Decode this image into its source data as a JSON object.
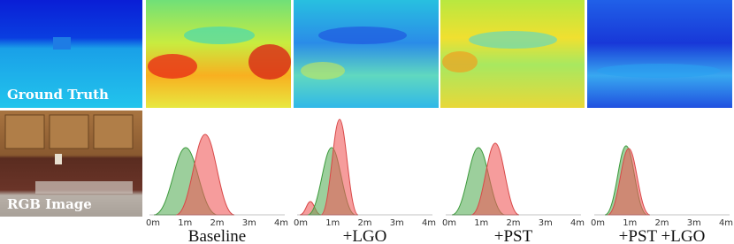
{
  "panels": {
    "ground_truth_label": "Ground Truth",
    "rgb_label": "RGB Image"
  },
  "columns": [
    {
      "caption": "Baseline",
      "axis_ticks": [
        "0m",
        "1m",
        "2m",
        "3m",
        "4m"
      ]
    },
    {
      "caption": "+LGO",
      "axis_ticks": [
        "0m",
        "1m",
        "2m",
        "3m",
        "4m"
      ]
    },
    {
      "caption": "+PST",
      "axis_ticks": [
        "0m",
        "1m",
        "2m",
        "3m",
        "4m"
      ]
    },
    {
      "caption": "+PST +LGO",
      "axis_ticks": [
        "0m",
        "1m",
        "2m",
        "3m",
        "4m"
      ]
    }
  ]
}
